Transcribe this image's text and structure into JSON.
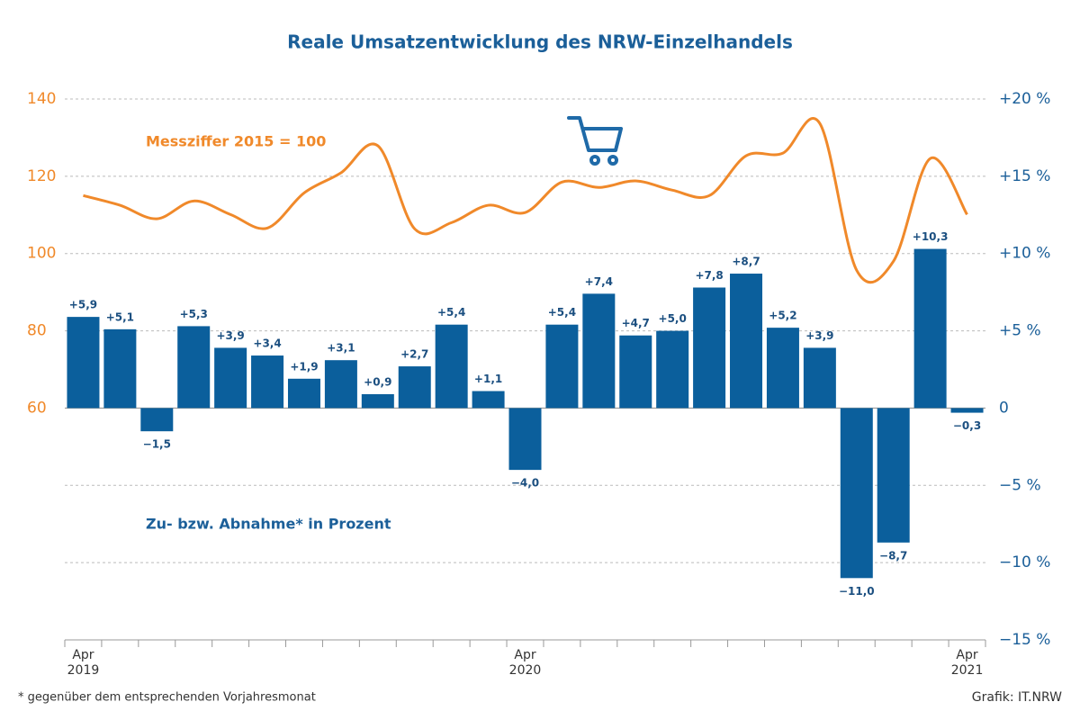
{
  "chart_data": {
    "type": "bar",
    "title": "Reale Umsatzentwicklung des NRW-Einzelhandels",
    "categories": [
      "Apr 2019",
      null,
      null,
      null,
      null,
      null,
      null,
      null,
      null,
      null,
      null,
      null,
      "Apr 2020",
      null,
      null,
      null,
      null,
      null,
      null,
      null,
      null,
      null,
      null,
      null,
      "Apr 2021"
    ],
    "series": [
      {
        "name": "Zu- bzw. Abnahme* in Prozent",
        "color": "#0b5f9c",
        "axis": "y2",
        "values": [
          5.9,
          5.1,
          -1.5,
          5.3,
          3.9,
          3.4,
          1.9,
          3.1,
          0.9,
          2.7,
          5.4,
          1.1,
          -4.0,
          5.4,
          7.4,
          4.7,
          5.0,
          7.8,
          8.7,
          5.2,
          3.9,
          -11.0,
          -8.7,
          10.3,
          -0.3
        ],
        "value_labels": [
          "+5,9",
          "+5,1",
          "−1,5",
          "+5,3",
          "+3,9",
          "+3,4",
          "+1,9",
          "+3,1",
          "+0,9",
          "+2,7",
          "+5,4",
          "+1,1",
          "−4,0",
          "+5,4",
          "+7,4",
          "+4,7",
          "+5,0",
          "+7,8",
          "+8,7",
          "+5,2",
          "+3,9",
          "−11,0",
          "−8,7",
          "+10,3",
          "−0,3"
        ]
      },
      {
        "name": "Messziffer 2015 = 100",
        "color": "#f0892a",
        "type": "line",
        "values": [
          115.0,
          112.5,
          109.0,
          113.6,
          110.1,
          106.6,
          115.7,
          120.9,
          127.9,
          106.4,
          108.0,
          112.5,
          110.6,
          118.5,
          117.1,
          118.8,
          116.4,
          115.0,
          125.3,
          126.0,
          133.7,
          95.7,
          98.0,
          124.6,
          110.1
        ]
      }
    ],
    "ylim": [
      0,
      140
    ],
    "yticks": [
      60,
      80,
      100,
      120,
      140
    ],
    "y2lim": [
      -15,
      20
    ],
    "y2ticks": [
      {
        "value": 20,
        "label": "+20 %"
      },
      {
        "value": 15,
        "label": "+15 %"
      },
      {
        "value": 10,
        "label": "+10 %"
      },
      {
        "value": 5,
        "label": "+5 %"
      },
      0,
      {
        "value": -5,
        "label": "−5 %"
      },
      {
        "value": -10,
        "label": "−10 %"
      },
      {
        "value": -15,
        "label": "−15 %"
      }
    ],
    "grid": true,
    "footnote": "*  gegenüber dem entsprechenden Vorjahresmonat",
    "source": "Grafik: IT.NRW"
  }
}
